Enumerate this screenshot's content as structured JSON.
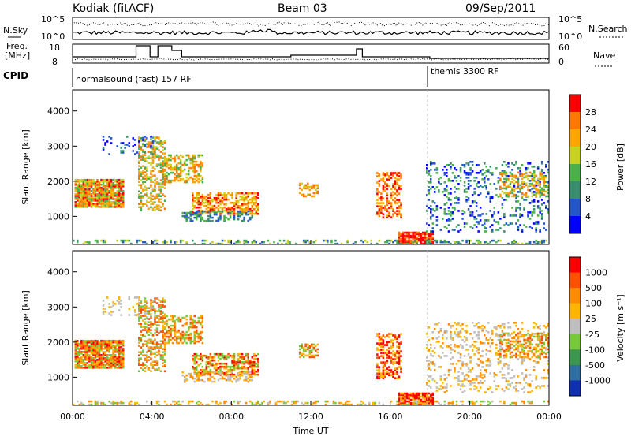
{
  "header": {
    "title": "Kodiak (fitACF)",
    "beam": "Beam 03",
    "date": "09/Sep/2011"
  },
  "top_panels": {
    "nsky_label": "N.Sky",
    "nsearch_label": "N.Search",
    "noise_ticks": [
      "10^5",
      "10^0"
    ],
    "freq_label": "Freq.",
    "freq_unit": "[MHz]",
    "freq_ticks": [
      "18",
      "8"
    ],
    "nave_label": "Nave",
    "nave_ticks": [
      "60",
      "0"
    ],
    "cpid_label": "CPID",
    "cpid_segments": [
      {
        "label": "normalsound (fast) 157 RF",
        "start_hour": 0
      },
      {
        "label": "themis 3300 RF",
        "start_hour": 18
      }
    ]
  },
  "colors": {
    "power_scale": [
      "#0000ff",
      "#2456c8",
      "#3a8c6e",
      "#4bb24b",
      "#c8d21e",
      "#ffa500",
      "#ff7800",
      "#ff0000"
    ],
    "velocity_scale": [
      "#1030b0",
      "#2e6ea0",
      "#3c9650",
      "#78c83c",
      "#bebebe",
      "#ffb400",
      "#ff8c00",
      "#ff5000",
      "#ff0000"
    ]
  },
  "chart_data": [
    {
      "type": "heatmap",
      "name": "power",
      "ylabel": "Slant Range [km]",
      "yticks": [
        "1000",
        "2000",
        "3000",
        "4000"
      ],
      "ylim": [
        200,
        4600
      ],
      "xlim": [
        0,
        24
      ],
      "colorbar_label": "Power [dB]",
      "colorbar_ticks": [
        "4",
        "8",
        "12",
        "16",
        "20",
        "24",
        "28"
      ]
    },
    {
      "type": "heatmap",
      "name": "velocity",
      "ylabel": "Slant Range [km]",
      "yticks": [
        "1000",
        "2000",
        "3000",
        "4000"
      ],
      "ylim": [
        200,
        4600
      ],
      "xlim": [
        0,
        24
      ],
      "colorbar_label": "Velocity [m s⁻¹]",
      "colorbar_ticks": [
        "1000",
        "500",
        "100",
        "25",
        "-25",
        "-100",
        "-500",
        "-1000"
      ]
    }
  ],
  "xaxis": {
    "ticks": [
      "00:00",
      "04:00",
      "08:00",
      "12:00",
      "16:00",
      "20:00",
      "00:00"
    ],
    "label": "Time UT"
  }
}
